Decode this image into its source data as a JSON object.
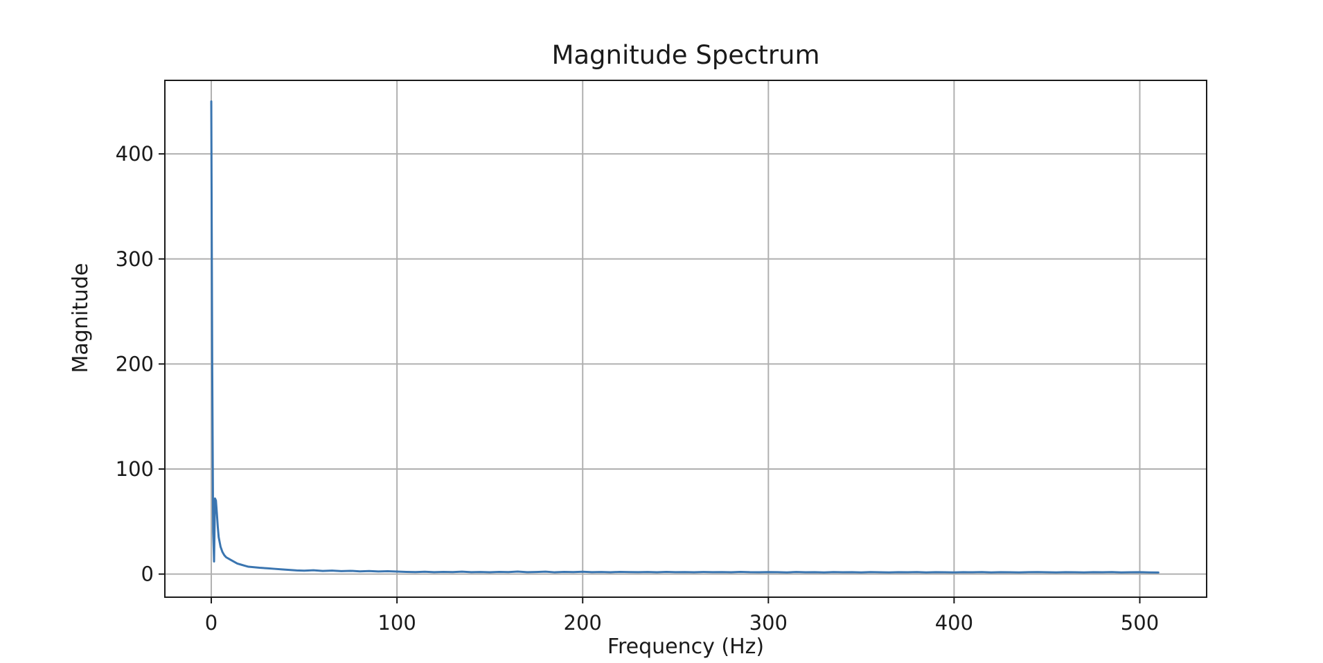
{
  "chart_data": {
    "type": "line",
    "title": "Magnitude Spectrum",
    "xlabel": "Frequency (Hz)",
    "ylabel": "Magnitude",
    "xlim": [
      -25,
      536
    ],
    "ylim": [
      -22,
      470
    ],
    "xticks": [
      0,
      100,
      200,
      300,
      400,
      500
    ],
    "yticks": [
      0,
      100,
      200,
      300,
      400
    ],
    "grid": true,
    "legend": "none",
    "series": [
      {
        "color": "#3a75b0",
        "x": [
          0,
          0.5,
          1,
          1.5,
          2,
          2.5,
          3,
          3.5,
          4,
          5,
          6,
          7,
          8,
          10,
          12,
          14,
          16,
          18,
          20,
          23,
          26,
          30,
          34,
          38,
          42,
          46,
          50,
          55,
          60,
          65,
          70,
          75,
          80,
          85,
          90,
          95,
          100,
          105,
          110,
          115,
          120,
          125,
          130,
          135,
          140,
          145,
          150,
          155,
          160,
          165,
          170,
          175,
          180,
          185,
          190,
          195,
          200,
          205,
          210,
          215,
          220,
          225,
          230,
          235,
          240,
          245,
          250,
          255,
          260,
          265,
          270,
          275,
          280,
          285,
          290,
          295,
          300,
          305,
          310,
          315,
          320,
          325,
          330,
          335,
          340,
          345,
          350,
          355,
          360,
          365,
          370,
          375,
          380,
          385,
          390,
          395,
          400,
          405,
          410,
          415,
          420,
          425,
          430,
          435,
          440,
          445,
          450,
          455,
          460,
          465,
          470,
          475,
          480,
          485,
          490,
          495,
          500,
          505,
          510
        ],
        "y": [
          450,
          200,
          40,
          12,
          72,
          70,
          58,
          45,
          35,
          26,
          21,
          18,
          16,
          14,
          12,
          10,
          9,
          8,
          7,
          6.5,
          6,
          5.5,
          5,
          4.5,
          4,
          3.5,
          3.2,
          3.6,
          3,
          3.3,
          2.8,
          3.1,
          2.6,
          2.9,
          2.5,
          2.7,
          2.4,
          2.1,
          1.9,
          2.2,
          1.8,
          2.1,
          1.9,
          2.3,
          1.8,
          2.0,
          1.7,
          2.1,
          1.9,
          2.4,
          1.8,
          2.0,
          2.3,
          1.7,
          2.1,
          1.9,
          2.2,
          1.8,
          2.0,
          1.7,
          2.1,
          1.9,
          1.8,
          2.0,
          1.7,
          2.1,
          1.8,
          1.9,
          1.7,
          2.0,
          1.8,
          1.9,
          1.7,
          2.1,
          1.8,
          1.7,
          1.9,
          1.8,
          1.6,
          2.0,
          1.7,
          1.8,
          1.6,
          1.9,
          1.7,
          1.8,
          1.6,
          1.9,
          1.7,
          1.6,
          1.8,
          1.7,
          1.9,
          1.6,
          1.8,
          1.7,
          1.6,
          1.8,
          1.7,
          1.9,
          1.6,
          1.8,
          1.7,
          1.6,
          1.8,
          1.9,
          1.7,
          1.6,
          1.8,
          1.7,
          1.6,
          1.8,
          1.7,
          1.9,
          1.6,
          1.7,
          1.8,
          1.6,
          1.5
        ]
      }
    ]
  }
}
